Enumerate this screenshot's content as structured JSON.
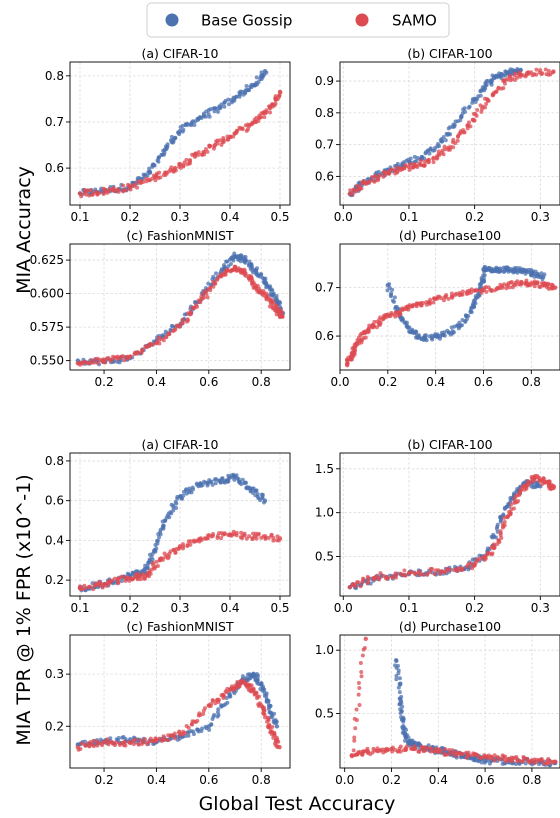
{
  "figure": {
    "xlabel": "Global Test Accuracy",
    "ylabel_top": "MIA Accuracy",
    "ylabel_bottom": "MIA TPR @ 1% FPR (x10^-1)",
    "legend": [
      {
        "name": "Base Gossip",
        "color": "#4c72b0"
      },
      {
        "name": "SAMO",
        "color": "#dd4b52"
      }
    ]
  },
  "chart_data": [
    {
      "id": "acc-cifar10",
      "type": "scatter",
      "title": "(a) CIFAR-10",
      "xlim": [
        0.08,
        0.52
      ],
      "ylim": [
        0.52,
        0.83
      ],
      "xticks": [
        0.1,
        0.2,
        0.3,
        0.4,
        0.5
      ],
      "xtick_labels": [
        "0.1",
        "0.2",
        "0.3",
        "0.4",
        "0.5"
      ],
      "yticks": [
        0.6,
        0.7,
        0.8
      ],
      "ytick_labels": [
        "0.6",
        "0.7",
        "0.8"
      ],
      "grid": true,
      "series": [
        {
          "name": "Base Gossip",
          "x": [
            0.1,
            0.15,
            0.2,
            0.24,
            0.27,
            0.3,
            0.34,
            0.38,
            0.42,
            0.45,
            0.47
          ],
          "y": [
            0.545,
            0.552,
            0.56,
            0.59,
            0.64,
            0.68,
            0.71,
            0.73,
            0.76,
            0.78,
            0.81
          ]
        },
        {
          "name": "SAMO",
          "x": [
            0.1,
            0.15,
            0.2,
            0.25,
            0.29,
            0.33,
            0.37,
            0.41,
            0.45,
            0.48,
            0.5
          ],
          "y": [
            0.545,
            0.55,
            0.558,
            0.58,
            0.6,
            0.625,
            0.65,
            0.675,
            0.7,
            0.73,
            0.765
          ]
        }
      ]
    },
    {
      "id": "acc-cifar100",
      "type": "scatter",
      "title": "(b) CIFAR-100",
      "xlim": [
        -0.005,
        0.33
      ],
      "ylim": [
        0.51,
        0.96
      ],
      "xticks": [
        0.0,
        0.1,
        0.2,
        0.3
      ],
      "xtick_labels": [
        "0.0",
        "0.1",
        "0.2",
        "0.3"
      ],
      "yticks": [
        0.6,
        0.7,
        0.8,
        0.9
      ],
      "ytick_labels": [
        "0.6",
        "0.7",
        "0.8",
        "0.9"
      ],
      "grid": true,
      "series": [
        {
          "name": "Base Gossip",
          "x": [
            0.01,
            0.03,
            0.06,
            0.09,
            0.12,
            0.15,
            0.18,
            0.21,
            0.23,
            0.25,
            0.27
          ],
          "y": [
            0.545,
            0.58,
            0.61,
            0.64,
            0.66,
            0.71,
            0.79,
            0.87,
            0.91,
            0.925,
            0.935
          ]
        },
        {
          "name": "SAMO",
          "x": [
            0.01,
            0.04,
            0.07,
            0.1,
            0.13,
            0.16,
            0.19,
            0.22,
            0.25,
            0.28,
            0.32
          ],
          "y": [
            0.545,
            0.585,
            0.615,
            0.63,
            0.645,
            0.69,
            0.76,
            0.84,
            0.905,
            0.925,
            0.93
          ]
        }
      ]
    },
    {
      "id": "acc-fashionmnist",
      "type": "scatter",
      "title": "(c) FashionMNIST",
      "xlim": [
        0.07,
        0.91
      ],
      "ylim": [
        0.543,
        0.637
      ],
      "xticks": [
        0.2,
        0.4,
        0.6,
        0.8
      ],
      "xtick_labels": [
        "0.2",
        "0.4",
        "0.6",
        "0.8"
      ],
      "yticks": [
        0.55,
        0.575,
        0.6,
        0.625
      ],
      "ytick_labels": [
        "0.550",
        "0.575",
        "0.600",
        "0.625"
      ],
      "grid": true,
      "series": [
        {
          "name": "Base Gossip",
          "x": [
            0.1,
            0.2,
            0.3,
            0.4,
            0.5,
            0.58,
            0.65,
            0.7,
            0.74,
            0.78,
            0.82,
            0.86,
            0.88
          ],
          "y": [
            0.55,
            0.549,
            0.552,
            0.565,
            0.58,
            0.6,
            0.618,
            0.628,
            0.625,
            0.617,
            0.607,
            0.595,
            0.585
          ]
        },
        {
          "name": "SAMO",
          "x": [
            0.1,
            0.2,
            0.3,
            0.4,
            0.5,
            0.58,
            0.65,
            0.7,
            0.74,
            0.78,
            0.82,
            0.86,
            0.88
          ],
          "y": [
            0.548,
            0.55,
            0.553,
            0.563,
            0.578,
            0.597,
            0.614,
            0.62,
            0.615,
            0.605,
            0.597,
            0.588,
            0.583
          ]
        }
      ]
    },
    {
      "id": "acc-purchase100",
      "type": "scatter",
      "title": "(d) Purchase100",
      "xlim": [
        0.0,
        0.92
      ],
      "ylim": [
        0.53,
        0.79
      ],
      "xticks": [
        0.0,
        0.2,
        0.4,
        0.6,
        0.8
      ],
      "xtick_labels": [
        "0.0",
        "0.2",
        "0.4",
        "0.6",
        "0.8"
      ],
      "yticks": [
        0.6,
        0.7
      ],
      "ytick_labels": [
        "0.6",
        "0.7"
      ],
      "grid": true,
      "series": [
        {
          "name": "Base Gossip",
          "x": [
            0.2,
            0.25,
            0.3,
            0.35,
            0.42,
            0.5,
            0.56,
            0.59,
            0.6,
            0.65,
            0.7,
            0.75,
            0.8,
            0.85
          ],
          "y": [
            0.705,
            0.64,
            0.61,
            0.595,
            0.6,
            0.62,
            0.66,
            0.7,
            0.738,
            0.738,
            0.737,
            0.735,
            0.73,
            0.722
          ]
        },
        {
          "name": "SAMO",
          "x": [
            0.03,
            0.05,
            0.08,
            0.12,
            0.18,
            0.25,
            0.32,
            0.4,
            0.5,
            0.6,
            0.7,
            0.78,
            0.85,
            0.9
          ],
          "y": [
            0.54,
            0.565,
            0.59,
            0.615,
            0.635,
            0.65,
            0.665,
            0.677,
            0.685,
            0.695,
            0.705,
            0.71,
            0.705,
            0.7
          ]
        }
      ]
    },
    {
      "id": "tpr-cifar10",
      "type": "scatter",
      "title": "(a) CIFAR-10",
      "xlim": [
        0.08,
        0.52
      ],
      "ylim": [
        0.12,
        0.84
      ],
      "xticks": [
        0.1,
        0.2,
        0.3,
        0.4,
        0.5
      ],
      "xtick_labels": [
        "0.1",
        "0.2",
        "0.3",
        "0.4",
        "0.5"
      ],
      "yticks": [
        0.2,
        0.4,
        0.6,
        0.8
      ],
      "ytick_labels": [
        "0.2",
        "0.4",
        "0.6",
        "0.8"
      ],
      "grid": true,
      "series": [
        {
          "name": "Base Gossip",
          "x": [
            0.1,
            0.15,
            0.2,
            0.23,
            0.25,
            0.27,
            0.3,
            0.34,
            0.38,
            0.41,
            0.44,
            0.47
          ],
          "y": [
            0.16,
            0.18,
            0.22,
            0.24,
            0.35,
            0.5,
            0.62,
            0.68,
            0.7,
            0.72,
            0.66,
            0.6
          ]
        },
        {
          "name": "SAMO",
          "x": [
            0.1,
            0.15,
            0.2,
            0.23,
            0.26,
            0.3,
            0.35,
            0.4,
            0.45,
            0.5
          ],
          "y": [
            0.16,
            0.18,
            0.21,
            0.22,
            0.3,
            0.37,
            0.41,
            0.43,
            0.42,
            0.41
          ]
        }
      ]
    },
    {
      "id": "tpr-cifar100",
      "type": "scatter",
      "title": "(b) CIFAR-100",
      "xlim": [
        -0.005,
        0.33
      ],
      "ylim": [
        0.05,
        1.68
      ],
      "xticks": [
        0.0,
        0.1,
        0.2,
        0.3
      ],
      "xtick_labels": [
        "0.0",
        "0.1",
        "0.2",
        "0.3"
      ],
      "yticks": [
        0.5,
        1.0,
        1.5
      ],
      "ytick_labels": [
        "0.5",
        "1.0",
        "1.5"
      ],
      "grid": true,
      "series": [
        {
          "name": "Base Gossip",
          "x": [
            0.01,
            0.05,
            0.1,
            0.15,
            0.19,
            0.22,
            0.24,
            0.26,
            0.28,
            0.3
          ],
          "y": [
            0.15,
            0.25,
            0.3,
            0.33,
            0.38,
            0.55,
            0.95,
            1.2,
            1.35,
            1.3
          ]
        },
        {
          "name": "SAMO",
          "x": [
            0.01,
            0.05,
            0.1,
            0.15,
            0.2,
            0.23,
            0.25,
            0.27,
            0.29,
            0.31,
            0.32
          ],
          "y": [
            0.15,
            0.27,
            0.31,
            0.33,
            0.4,
            0.6,
            0.95,
            1.25,
            1.4,
            1.35,
            1.28
          ]
        }
      ]
    },
    {
      "id": "tpr-fashionmnist",
      "type": "scatter",
      "title": "(c) FashionMNIST",
      "xlim": [
        0.07,
        0.91
      ],
      "ylim": [
        0.12,
        0.375
      ],
      "xticks": [
        0.2,
        0.4,
        0.6,
        0.8
      ],
      "xtick_labels": [
        "0.2",
        "0.4",
        "0.6",
        "0.8"
      ],
      "yticks": [
        0.2,
        0.3
      ],
      "ytick_labels": [
        "0.2",
        "0.3"
      ],
      "grid": true,
      "series": [
        {
          "name": "Base Gossip",
          "x": [
            0.1,
            0.2,
            0.3,
            0.4,
            0.5,
            0.6,
            0.68,
            0.73,
            0.77,
            0.8,
            0.83,
            0.86
          ],
          "y": [
            0.165,
            0.17,
            0.175,
            0.17,
            0.18,
            0.2,
            0.26,
            0.29,
            0.3,
            0.28,
            0.24,
            0.2
          ]
        },
        {
          "name": "SAMO",
          "x": [
            0.1,
            0.2,
            0.3,
            0.4,
            0.5,
            0.6,
            0.68,
            0.73,
            0.77,
            0.81,
            0.84,
            0.87
          ],
          "y": [
            0.16,
            0.17,
            0.168,
            0.172,
            0.185,
            0.24,
            0.27,
            0.285,
            0.27,
            0.23,
            0.19,
            0.16
          ]
        }
      ]
    },
    {
      "id": "tpr-purchase100",
      "type": "scatter",
      "title": "(d) Purchase100",
      "xlim": [
        -0.02,
        0.92
      ],
      "ylim": [
        0.07,
        1.12
      ],
      "xticks": [
        0.0,
        0.2,
        0.4,
        0.6,
        0.8
      ],
      "xtick_labels": [
        "0.0",
        "0.2",
        "0.4",
        "0.6",
        "0.8"
      ],
      "yticks": [
        0.5,
        1.0
      ],
      "ytick_labels": [
        "0.5",
        "1.0"
      ],
      "grid": true,
      "series": [
        {
          "name": "Base Gossip",
          "x": [
            0.22,
            0.24,
            0.25,
            0.27,
            0.3,
            0.35,
            0.4,
            0.45,
            0.5,
            0.55,
            0.6,
            0.7,
            0.8,
            0.9
          ],
          "y": [
            0.92,
            0.6,
            0.38,
            0.28,
            0.25,
            0.23,
            0.21,
            0.19,
            0.17,
            0.15,
            0.13,
            0.12,
            0.12,
            0.11
          ]
        },
        {
          "name": "SAMO",
          "x": [
            0.09,
            0.03,
            0.1,
            0.2,
            0.3,
            0.4,
            0.5,
            0.6,
            0.7,
            0.8,
            0.9
          ],
          "y": [
            1.09,
            0.17,
            0.2,
            0.22,
            0.22,
            0.2,
            0.18,
            0.16,
            0.14,
            0.13,
            0.12
          ]
        }
      ]
    }
  ]
}
